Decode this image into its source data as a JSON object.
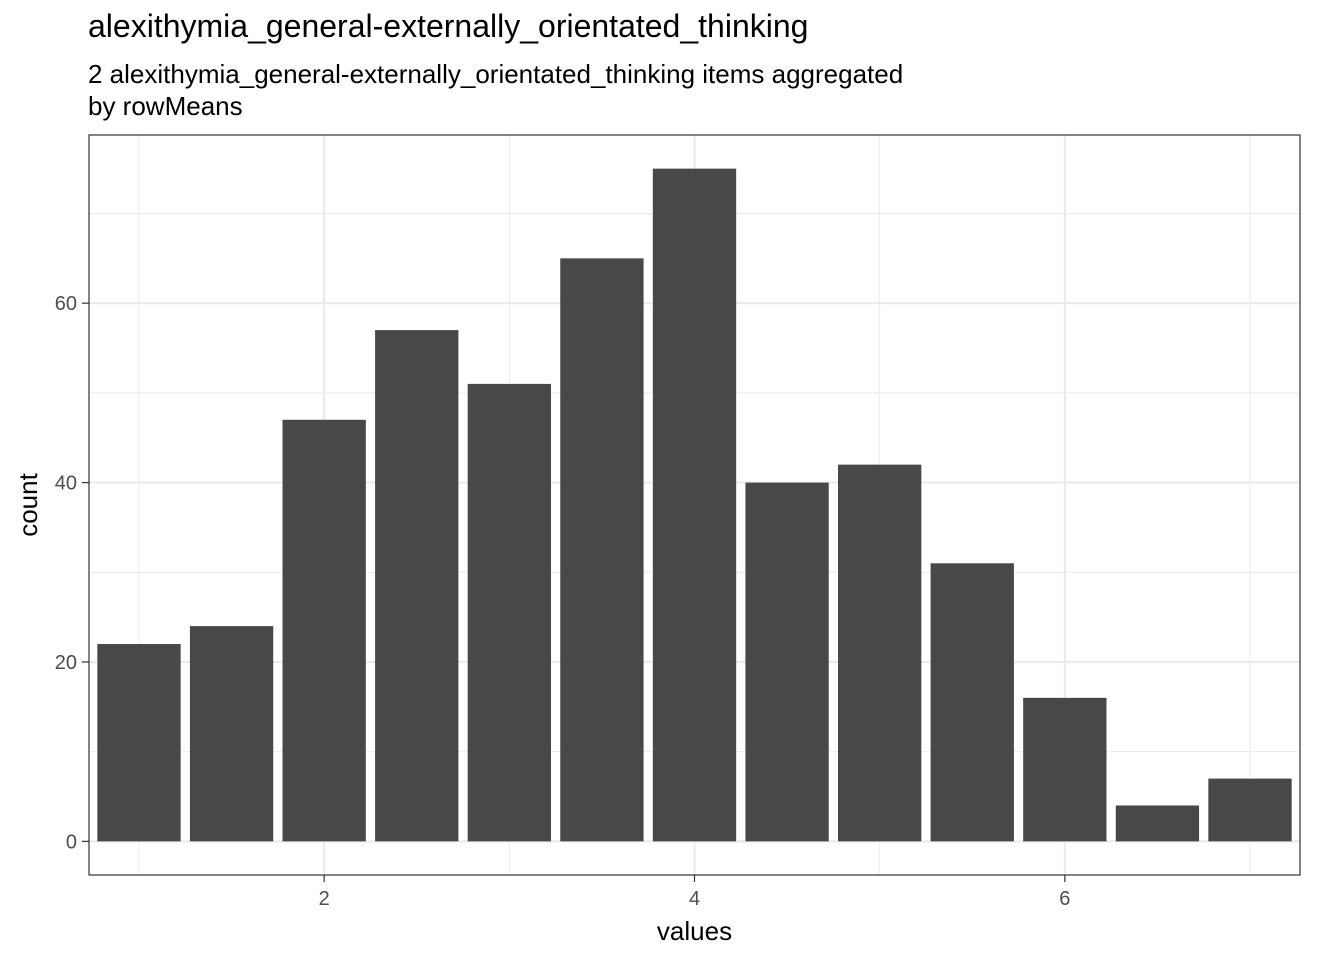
{
  "chart_data": {
    "type": "bar",
    "title": "alexithymia_general-externally_orientated_thinking",
    "subtitle_lines": [
      "2 alexithymia_general-externally_orientated_thinking items aggregated",
      "by rowMeans"
    ],
    "xlabel": "values",
    "ylabel": "count",
    "x": [
      1,
      1.5,
      2,
      2.5,
      3,
      3.5,
      4,
      4.5,
      5,
      5.5,
      6,
      6.5,
      7
    ],
    "values": [
      22,
      24,
      47,
      57,
      51,
      65,
      75,
      40,
      42,
      31,
      16,
      4,
      7
    ],
    "bar_width": 0.45,
    "xlim": [
      0.73,
      7.27
    ],
    "ylim": [
      -3.75,
      78.75
    ],
    "x_ticks": [
      2,
      4,
      6
    ],
    "x_minor_ticks": [
      1,
      3,
      5,
      7
    ],
    "y_ticks": [
      0,
      20,
      40,
      60
    ],
    "y_minor_ticks": [
      10,
      30,
      50,
      70
    ],
    "grid": true,
    "bar_color": "#484848",
    "grid_color": "#ebebeb",
    "panel_border_color": "#333333"
  }
}
